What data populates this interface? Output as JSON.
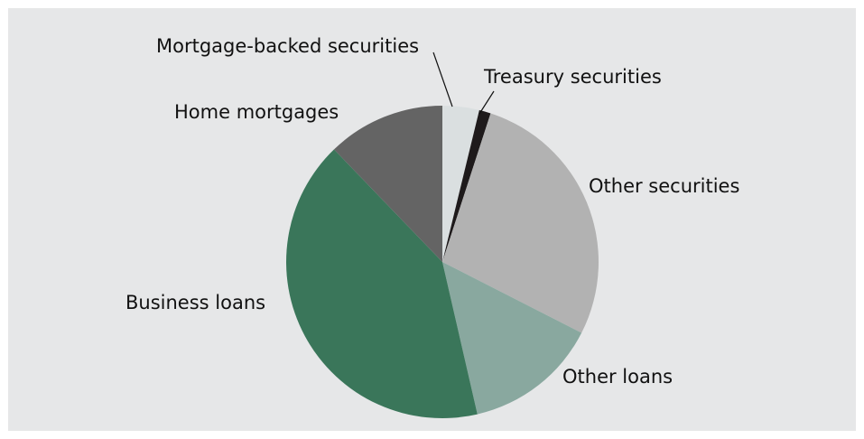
{
  "chart_data": {
    "type": "pie",
    "title": "",
    "start": "top",
    "direction": "clockwise",
    "slices": [
      {
        "label": "Mortgage-backed securities",
        "value": 3.8,
        "color": "#dadfe0"
      },
      {
        "label": "Treasury securities",
        "value": 1.2,
        "color": "#1e1a1b"
      },
      {
        "label": "Other securities",
        "value": 27.5,
        "color": "#b2b2b2"
      },
      {
        "label": "Other loans",
        "value": 13.9,
        "color": "#89a89f"
      },
      {
        "label": "Business loans",
        "value": 41.4,
        "color": "#3a765a"
      },
      {
        "label": "Home mortgages",
        "value": 12.2,
        "color": "#646464"
      }
    ]
  }
}
